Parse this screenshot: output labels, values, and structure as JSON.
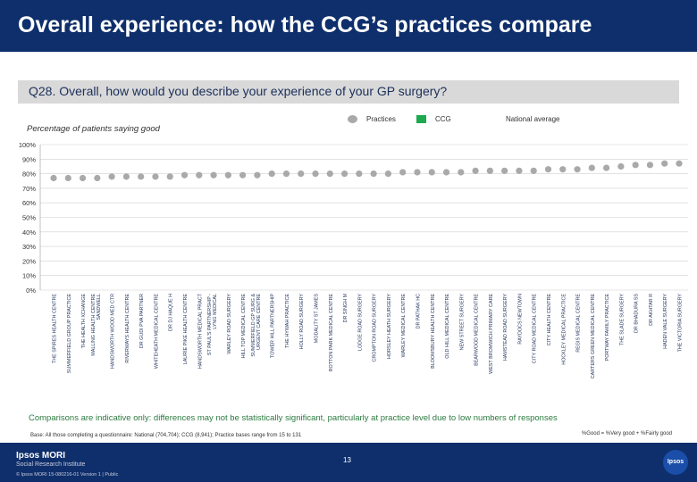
{
  "header": {
    "title": "Overall experience: how the CCG’s practices compare"
  },
  "question": "Q28. Overall, how would you describe your experience of your GP surgery?",
  "subtitle": "Percentage of patients saying good",
  "legend": {
    "practices": "Practices",
    "ccg": "CCG",
    "national": "National average"
  },
  "colors": {
    "practice": "#a9a9a9",
    "ccg": "#1ea94f",
    "header": "#0e2f6b",
    "footnote": "#2c7a3f"
  },
  "chart_data": {
    "type": "scatter",
    "title": "Q28. Overall, how would you describe your experience of your GP surgery?",
    "ylabel": "Percentage of patients saying good",
    "ylim": [
      0,
      100
    ],
    "yticks": [
      "0%",
      "10%",
      "20%",
      "30%",
      "40%",
      "50%",
      "60%",
      "70%",
      "80%",
      "90%",
      "100%"
    ],
    "categories": [
      "THE SPIRES HEALTH CENTRE",
      "SUMMERFIELD GROUP PRACTICE",
      "THE HEALTH XCHANGE",
      "MALLING HEALTH CENTRE SANDWELL",
      "HANDSWORTH WOOD MED CTR",
      "RIVERWAYS HEALTH CENTRE",
      "DR GUDI PVA PARTNER",
      "WHITEHEATH MEDICAL CENTRE",
      "DR DJ HAQUE H",
      "LAURIE PIKE HEALTH CENTRE",
      "HANDSWORTH MEDICAL PRACT",
      "ST PAUL'S PARTNERSHIP - LYNG MEDICAL",
      "WARLEY ROAD SURGERY",
      "HILL TOP MEDICAL CENTRE",
      "SUMMERFIELD GP SURG & URGENT CARE CENTRE",
      "TOWER HILL PARTNERSHIP",
      "THE HYWAH PRACTICE",
      "HOLLY ROAD SURGERY",
      "MODALITY ST JAMES",
      "ROTTON PARK MEDICAL CENTRE",
      "DR SINGH M",
      "LODGE ROAD SURGERY",
      "CROMPTON ROAD SURGERY",
      "HORSLEY HEATH SURGERY",
      "WARLEY MEDICAL CENTRE",
      "DR PATHAK HC",
      "BLOOMSBURY HEALTH CENTRE",
      "OLD HILL MEDICAL CENTRE",
      "NEW STREET SURGERY",
      "BEARWOOD MEDICAL CENTRE",
      "WEST BROMWICH PRIMARY CARE",
      "HAMSTEAD ROAD SURGERY",
      "RAYDOCS NEWTOWN",
      "CITY ROAD MEDICAL CENTRE",
      "CITY HEALTH CENTRE",
      "HOCKLEY MEDICAL PRACTICE",
      "REGIS MEDICAL CENTRE",
      "CARTERS GREEN MEDICAL CENTRE",
      "PORTWAY FAMILY PRACTICE",
      "THE SLADE SURGERY",
      "DR BHADURA SS",
      "DR AKHTAR R",
      "HADEN VALE SURGERY",
      "THE VICTORIA SURGERY"
    ],
    "practice_values": [
      77,
      77,
      77,
      77,
      78,
      78,
      78,
      78,
      78,
      79,
      79,
      79,
      79,
      79,
      79,
      80,
      80,
      80,
      80,
      80,
      80,
      80,
      80,
      80,
      81,
      81,
      81,
      81,
      81,
      82,
      82,
      82,
      82,
      82,
      83,
      83,
      83,
      84,
      84,
      85,
      86,
      86,
      87,
      87
    ],
    "ccg_index": null,
    "national_value": null
  },
  "footnote": "Comparisons are indicative only: differences may not be statistically significant, particularly at practice level due to low numbers of responses",
  "base": "Base: All those completing a questionnaire: National (704,704); CCG (8,941); Practice bases range from 15 to 131",
  "good_legend": "%Good = %Very good + %Fairly good",
  "footer": {
    "logo_main": "Ipsos MORI",
    "logo_sub": "Social Research Institute",
    "copyright": "© Ipsos MORI    15-080216-01 Version 1 | Public",
    "page": "13",
    "logo_badge": "Ipsos"
  }
}
